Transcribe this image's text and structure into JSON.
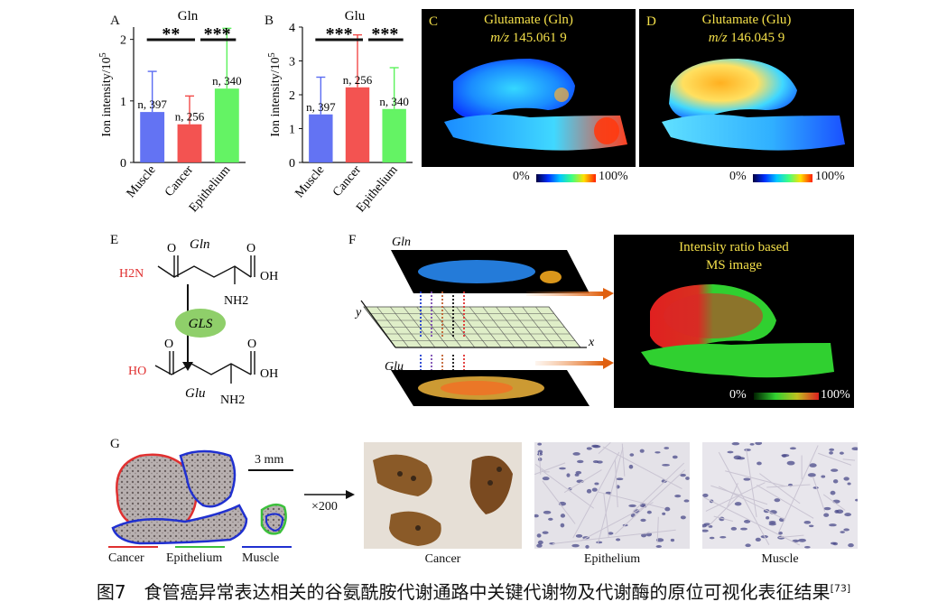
{
  "panels": {
    "A": {
      "letter": "A",
      "title": "Gln",
      "ylabel": "Ion intensity/10",
      "ylabel_exp": "5",
      "sig_left": "**",
      "sig_right": "***",
      "chart_data": {
        "type": "bar",
        "categories": [
          "Muscle",
          "Cancer",
          "Epithelium"
        ],
        "values": [
          0.82,
          0.62,
          1.2
        ],
        "errors": [
          0.66,
          0.46,
          0.98
        ],
        "bar_labels": [
          "n, 397",
          "n, 256",
          "n, 340"
        ],
        "colors": [
          "#5b6cf2",
          "#f24a48",
          "#5cf25c"
        ],
        "ylim": [
          0,
          2.2
        ],
        "yticks": [
          "0",
          "1",
          "2"
        ]
      }
    },
    "B": {
      "letter": "B",
      "title": "Glu",
      "ylabel": "Ion intensity/10",
      "ylabel_exp": "5",
      "sig_left": "***",
      "sig_right": "***",
      "chart_data": {
        "type": "bar",
        "categories": [
          "Muscle",
          "Cancer",
          "Epithelium"
        ],
        "values": [
          1.42,
          2.22,
          1.58
        ],
        "errors": [
          1.1,
          1.55,
          1.22
        ],
        "bar_labels": [
          "n, 397",
          "n, 256",
          "n, 340"
        ],
        "colors": [
          "#5b6cf2",
          "#f24a48",
          "#5cf25c"
        ],
        "ylim": [
          0,
          4
        ],
        "yticks": [
          "0",
          "1",
          "2",
          "3",
          "4"
        ]
      }
    },
    "C": {
      "letter": "C",
      "title": "Glutamate (Gln)",
      "mz_prefix": "m/z",
      "mz_value": "145.061 9",
      "scale_min": "0%",
      "scale_max": "100%"
    },
    "D": {
      "letter": "D",
      "title": "Glutamate (Glu)",
      "mz_prefix": "m/z",
      "mz_value": "146.045 9",
      "scale_min": "0%",
      "scale_max": "100%"
    },
    "E": {
      "letter": "E",
      "top_name": "Gln",
      "bottom_name": "Glu",
      "enzyme": "GLS",
      "atom_o": "O",
      "atom_oh": "OH",
      "atom_ho": "HO",
      "atom_h2n": "H2N",
      "atom_nh2": "NH2"
    },
    "F": {
      "letter": "F",
      "top_label": "Gln",
      "bottom_label": "Glu",
      "axis_x": "x",
      "axis_y": "y",
      "result_title_1": "Intensity ratio based",
      "result_title_2": "MS image",
      "scale_min": "0%",
      "scale_max": "100%"
    },
    "G": {
      "letter": "G",
      "scale_bar": "3 mm",
      "magnification": "×200",
      "legend": [
        "Cancer",
        "Epithelium",
        "Muscle"
      ],
      "legend_colors": [
        "#e03030",
        "#3cc03c",
        "#2030d0"
      ],
      "micrographs": [
        "Cancer",
        "Epithelium",
        "Muscle"
      ]
    }
  },
  "caption": {
    "text": "图7　食管癌异常表达相关的谷氨酰胺代谢通路中关键代谢物及代谢酶的原位可视化表征结果",
    "ref": "[73]"
  }
}
